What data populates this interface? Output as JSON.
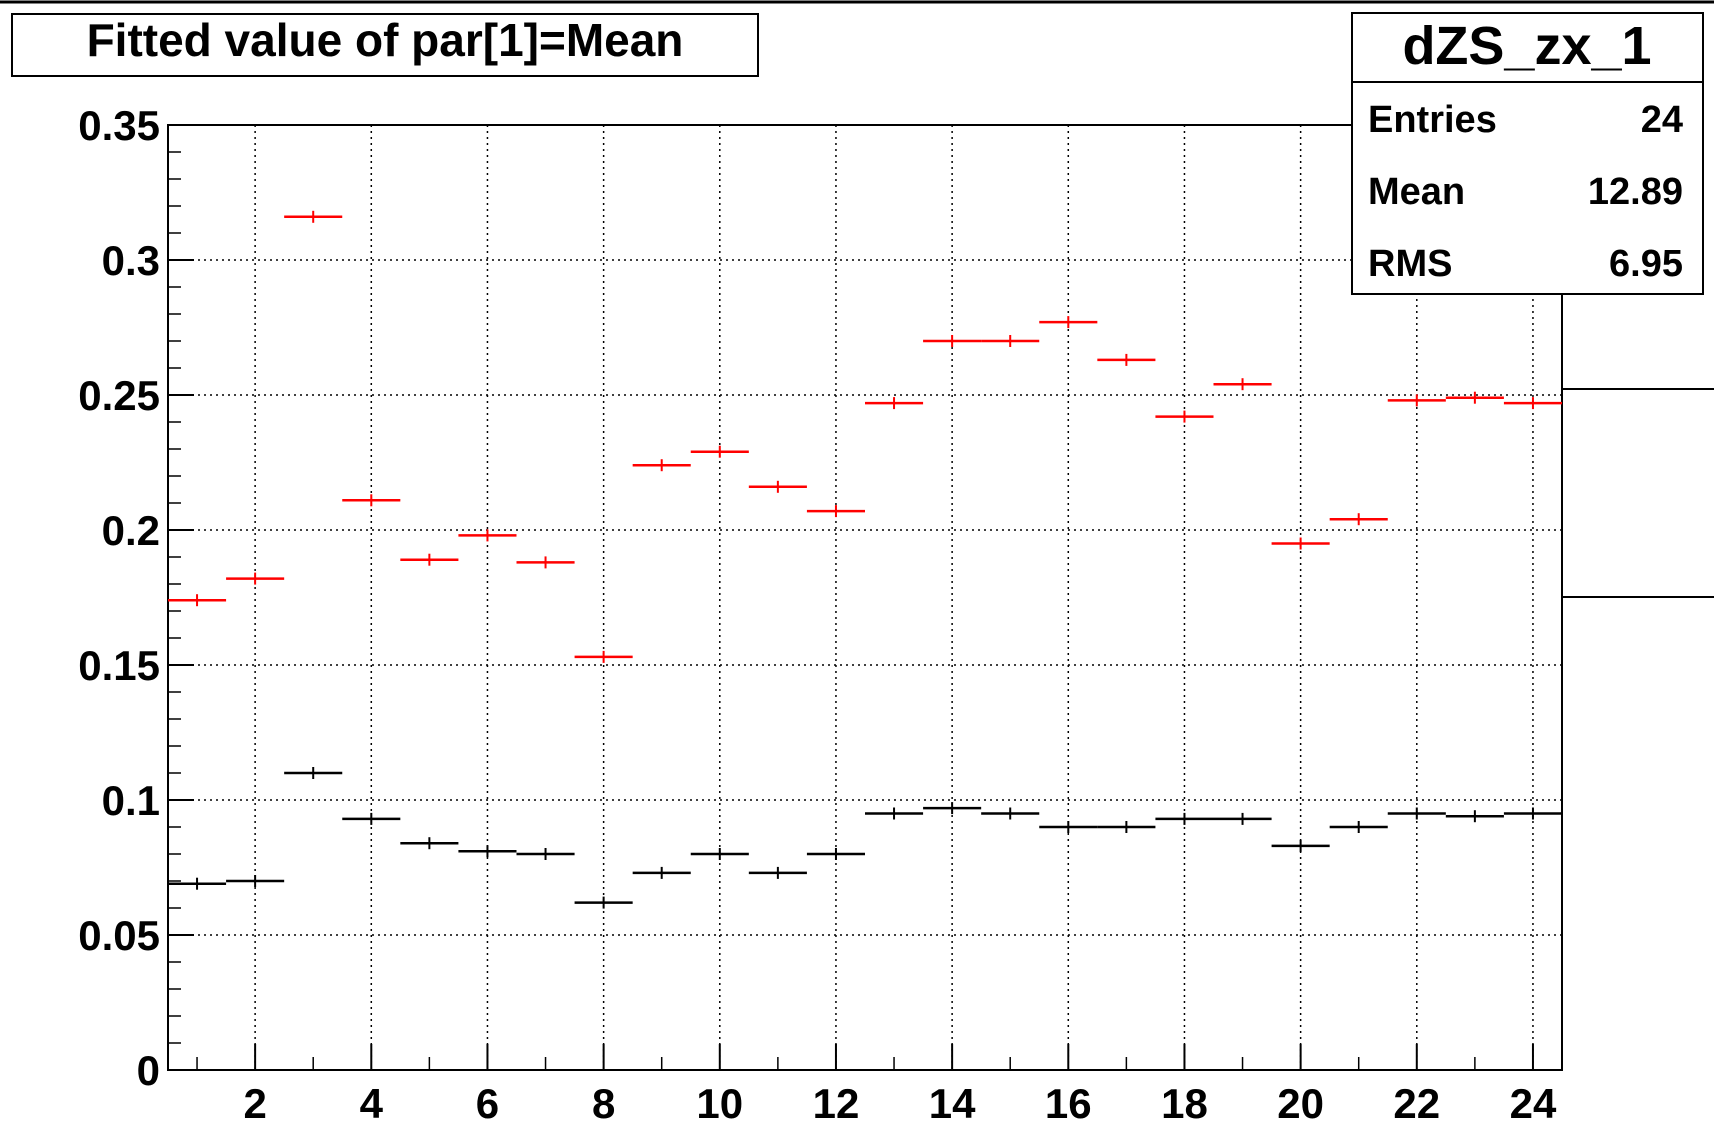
{
  "chart_data": {
    "type": "scatter",
    "title": "Fitted value of par[1]=Mean",
    "xlabel": "",
    "ylabel": "",
    "xlim": [
      0.5,
      24.5
    ],
    "ylim": [
      0,
      0.35
    ],
    "grid": true,
    "x_ticks": [
      "2",
      "4",
      "6",
      "8",
      "10",
      "12",
      "14",
      "16",
      "18",
      "20",
      "22",
      "24"
    ],
    "y_ticks": [
      "0",
      "0.05",
      "0.1",
      "0.15",
      "0.2",
      "0.25",
      "0.3",
      "0.35"
    ],
    "x": [
      1,
      2,
      3,
      4,
      5,
      6,
      7,
      8,
      9,
      10,
      11,
      12,
      13,
      14,
      15,
      16,
      17,
      18,
      19,
      20,
      21,
      22,
      23,
      24
    ],
    "series": [
      {
        "color": "#ff0000",
        "values": [
          0.174,
          0.182,
          0.316,
          0.211,
          0.189,
          0.198,
          0.188,
          0.153,
          0.224,
          0.229,
          0.216,
          0.207,
          0.247,
          0.27,
          0.27,
          0.277,
          0.263,
          0.242,
          0.254,
          0.195,
          0.204,
          0.248,
          0.249,
          0.247
        ]
      },
      {
        "color": "#000000",
        "values": [
          0.069,
          0.07,
          0.11,
          0.093,
          0.084,
          0.081,
          0.08,
          0.062,
          0.073,
          0.08,
          0.073,
          0.08,
          0.095,
          0.097,
          0.095,
          0.09,
          0.09,
          0.093,
          0.093,
          0.083,
          0.09,
          0.095,
          0.094,
          0.095
        ]
      }
    ],
    "stats": {
      "name": "dZS_zx_1",
      "rows": [
        {
          "label": "Entries",
          "value": "24"
        },
        {
          "label": "Mean",
          "value": "12.89"
        },
        {
          "label": "RMS",
          "value": "6.95"
        }
      ]
    }
  }
}
